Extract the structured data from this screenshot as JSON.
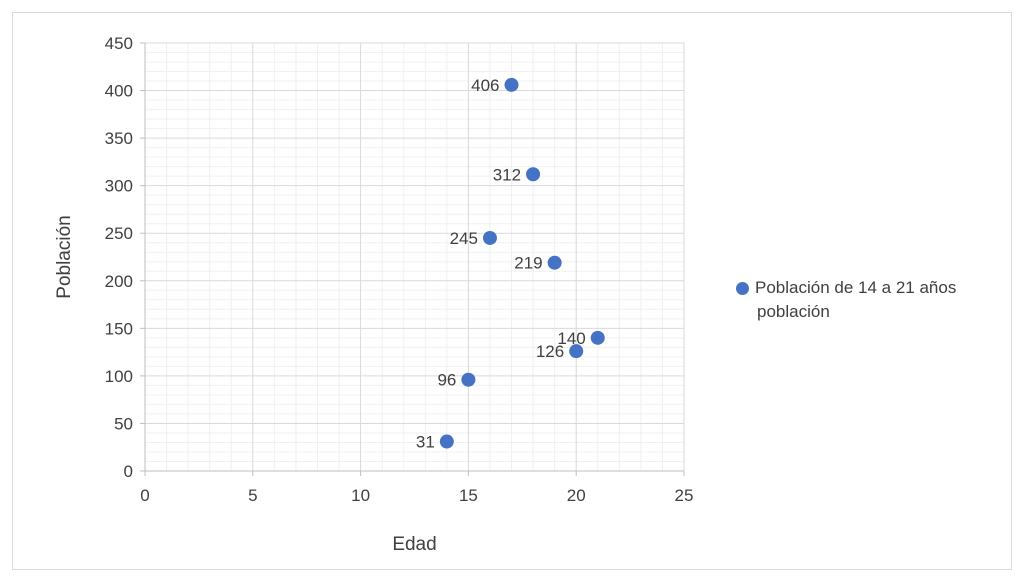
{
  "chart_data": {
    "type": "scatter",
    "title": "",
    "xlabel": "Edad",
    "ylabel": "Población",
    "xlim": [
      0,
      25
    ],
    "ylim": [
      0,
      450
    ],
    "x_ticks": [
      0,
      5,
      10,
      15,
      20,
      25
    ],
    "y_ticks": [
      0,
      50,
      100,
      150,
      200,
      250,
      300,
      350,
      400,
      450
    ],
    "grid": true,
    "minor_grid": true,
    "legend_position": "right",
    "series": [
      {
        "name": "Población de 14 a 21 años población",
        "color": "#4472c4",
        "points": [
          {
            "x": 14,
            "y": 31
          },
          {
            "x": 15,
            "y": 96
          },
          {
            "x": 16,
            "y": 245
          },
          {
            "x": 17,
            "y": 406
          },
          {
            "x": 18,
            "y": 312
          },
          {
            "x": 19,
            "y": 219
          },
          {
            "x": 20,
            "y": 126
          },
          {
            "x": 21,
            "y": 140
          }
        ]
      }
    ]
  },
  "legend": {
    "line1": "Población de 14 a 21 años",
    "line2": "población"
  }
}
